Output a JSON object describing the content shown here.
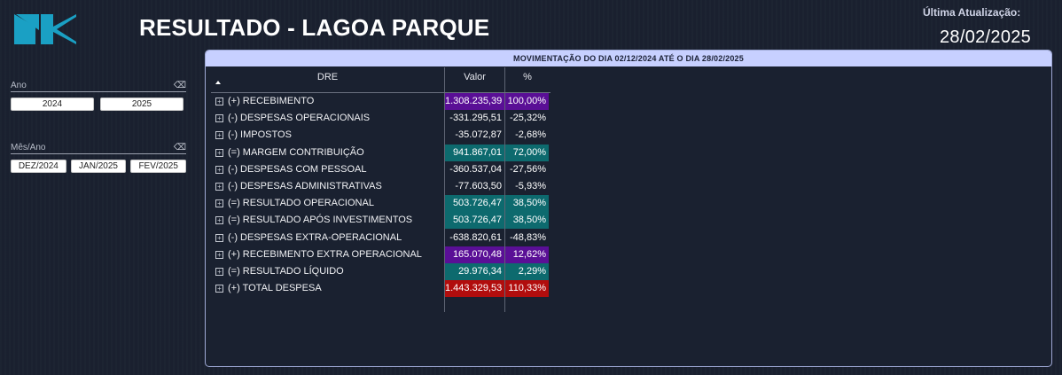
{
  "header": {
    "title": "RESULTADO - LAGOA PARQUE",
    "update_label": "Última Atualização:",
    "update_value": "28/02/2025"
  },
  "filters": {
    "ano": {
      "label": "Ano",
      "options": [
        "2024",
        "2025"
      ]
    },
    "mes_ano": {
      "label": "Mês/Ano",
      "options": [
        "DEZ/2024",
        "JAN/2025",
        "FEV/2025"
      ]
    }
  },
  "table": {
    "title": "MOVIMENTAÇÃO DO DIA 02/12/2024 ATÉ O DIA 28/02/2025",
    "columns": [
      "DRE",
      "Valor",
      "%"
    ],
    "rows": [
      {
        "label": "(+) RECEBIMENTO",
        "valor": "1.308.235,39",
        "pct": "100,00%",
        "highlight": "#5a0f96"
      },
      {
        "label": "(-) DESPESAS OPERACIONAIS",
        "valor": "-331.295,51",
        "pct": "-25,32%",
        "highlight": ""
      },
      {
        "label": "(-) IMPOSTOS",
        "valor": "-35.072,87",
        "pct": "-2,68%",
        "highlight": ""
      },
      {
        "label": "(=) MARGEM CONTRIBUIÇÃO",
        "valor": "941.867,01",
        "pct": "72,00%",
        "highlight": "#0d6a6e"
      },
      {
        "label": "(-) DESPESAS COM PESSOAL",
        "valor": "-360.537,04",
        "pct": "-27,56%",
        "highlight": ""
      },
      {
        "label": "(-) DESPESAS ADMINISTRATIVAS",
        "valor": "-77.603,50",
        "pct": "-5,93%",
        "highlight": ""
      },
      {
        "label": "(=) RESULTADO OPERACIONAL",
        "valor": "503.726,47",
        "pct": "38,50%",
        "highlight": "#0d6a6e"
      },
      {
        "label": "(=) RESULTADO APÓS INVESTIMENTOS",
        "valor": "503.726,47",
        "pct": "38,50%",
        "highlight": "#0d6a6e"
      },
      {
        "label": "(-) DESPESAS EXTRA-OPERACIONAL",
        "valor": "-638.820,61",
        "pct": "-48,83%",
        "highlight": ""
      },
      {
        "label": "(+) RECEBIMENTO EXTRA OPERACIONAL",
        "valor": "165.070,48",
        "pct": "12,62%",
        "highlight": "#5a0f96"
      },
      {
        "label": "(=) RESULTADO LÍQUIDO",
        "valor": "29.976,34",
        "pct": "2,29%",
        "highlight": "#0d6a6e"
      },
      {
        "label": "(+) TOTAL DESPESA",
        "valor": "1.443.329,53",
        "pct": "110,33%",
        "highlight": "#b10d0d"
      }
    ]
  },
  "colors": {
    "logo": "#1aa0c4",
    "panel_header": "#c7d0ff"
  }
}
